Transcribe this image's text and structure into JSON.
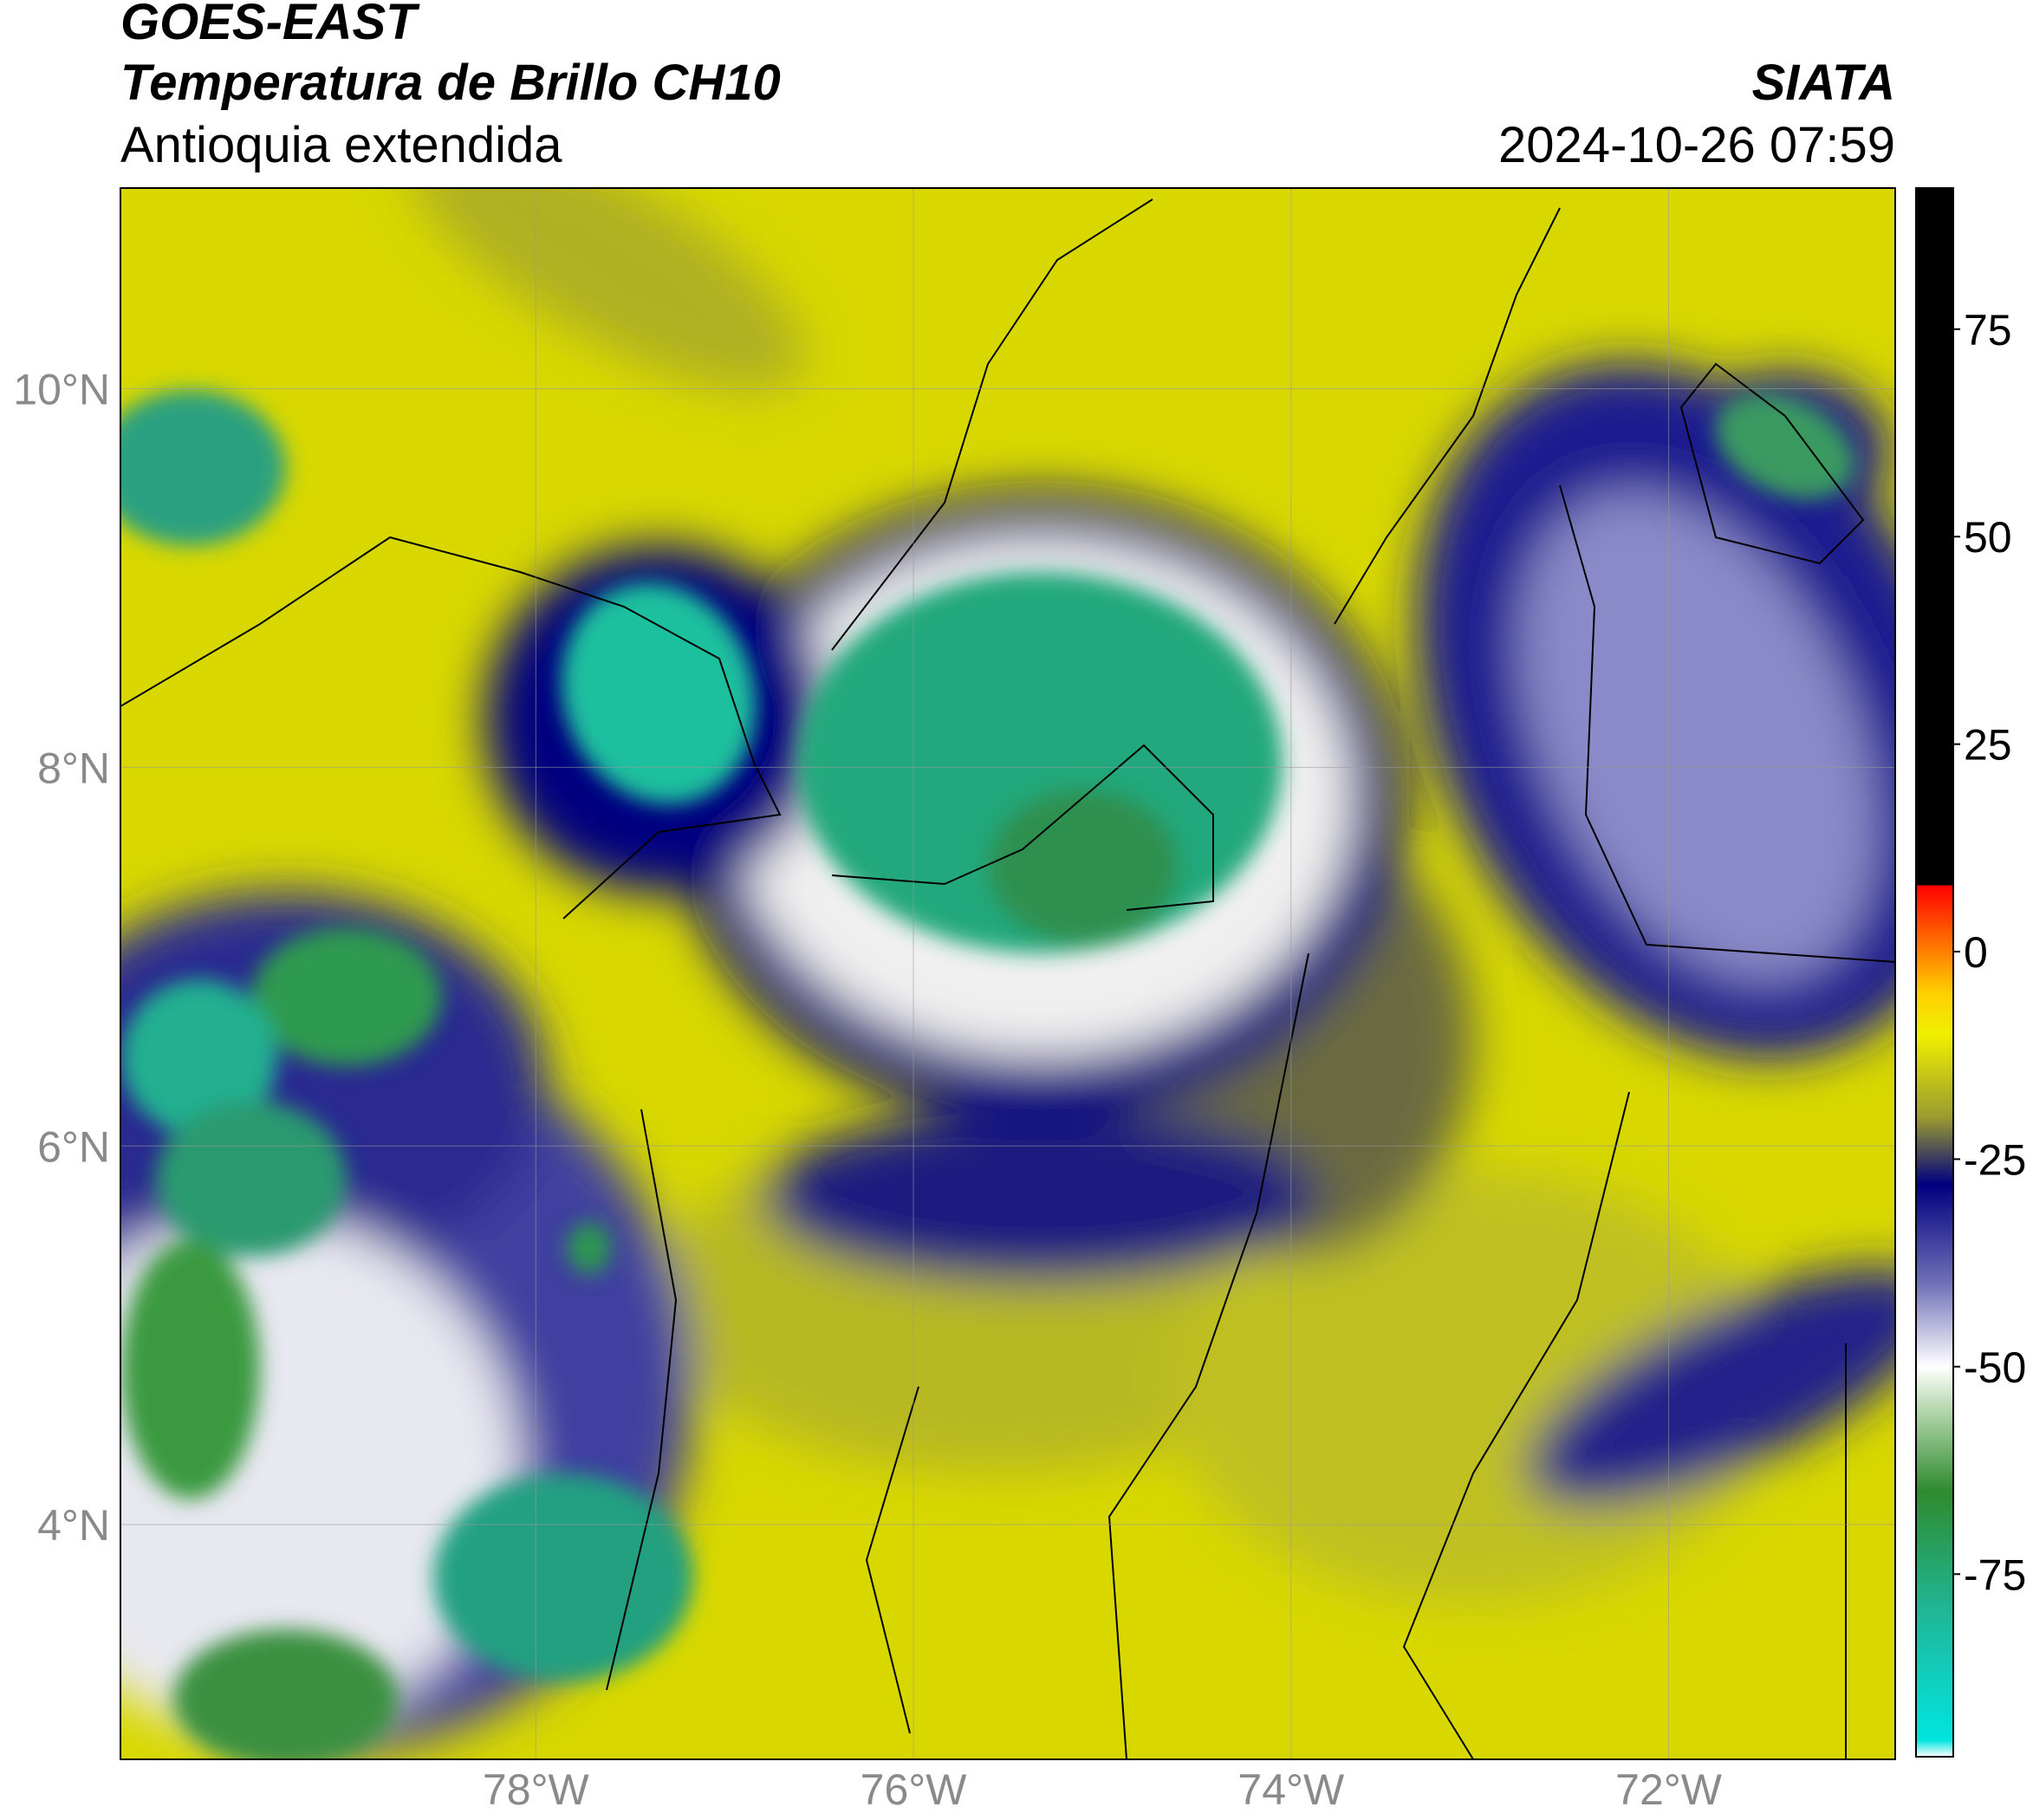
{
  "header": {
    "title": "GOES-EAST",
    "subtitle": "Temperatura de Brillo CH10",
    "region": "Antioquia extendida",
    "source": "SIATA",
    "timestamp": "2024-10-26 07:59"
  },
  "map": {
    "xlim": [
      -80.2,
      -70.8
    ],
    "ylim": [
      2.76,
      11.06
    ],
    "xticks": [
      {
        "value": -78,
        "label": "78°W"
      },
      {
        "value": -76,
        "label": "76°W"
      },
      {
        "value": -74,
        "label": "74°W"
      },
      {
        "value": -72,
        "label": "72°W"
      }
    ],
    "yticks": [
      {
        "value": 10,
        "label": "10°N"
      },
      {
        "value": 8,
        "label": "8°N"
      },
      {
        "value": 6,
        "label": "6°N"
      },
      {
        "value": 4,
        "label": "4°N"
      }
    ],
    "grid": true
  },
  "colorbar": {
    "lim": [
      -97,
      92
    ],
    "ticks": [
      75,
      50,
      25,
      0,
      -25,
      -50,
      -75
    ],
    "stops": [
      {
        "value": -97,
        "color": "#ffffff"
      },
      {
        "value": -95,
        "color": "#00e5e0"
      },
      {
        "value": -80,
        "color": "#1fb89a"
      },
      {
        "value": -65,
        "color": "#2e8b2e"
      },
      {
        "value": -55,
        "color": "#b8d8b0"
      },
      {
        "value": -50,
        "color": "#ffffff"
      },
      {
        "value": -40,
        "color": "#7070b8"
      },
      {
        "value": -28,
        "color": "#000080"
      },
      {
        "value": -20,
        "color": "#9a9a30"
      },
      {
        "value": -10,
        "color": "#f0f000"
      },
      {
        "value": -5,
        "color": "#ffd000"
      },
      {
        "value": 0,
        "color": "#ff8000"
      },
      {
        "value": 8,
        "color": "#ff0000"
      },
      {
        "value": 8.01,
        "color": "#000000"
      },
      {
        "value": 92,
        "color": "#000000"
      }
    ]
  }
}
